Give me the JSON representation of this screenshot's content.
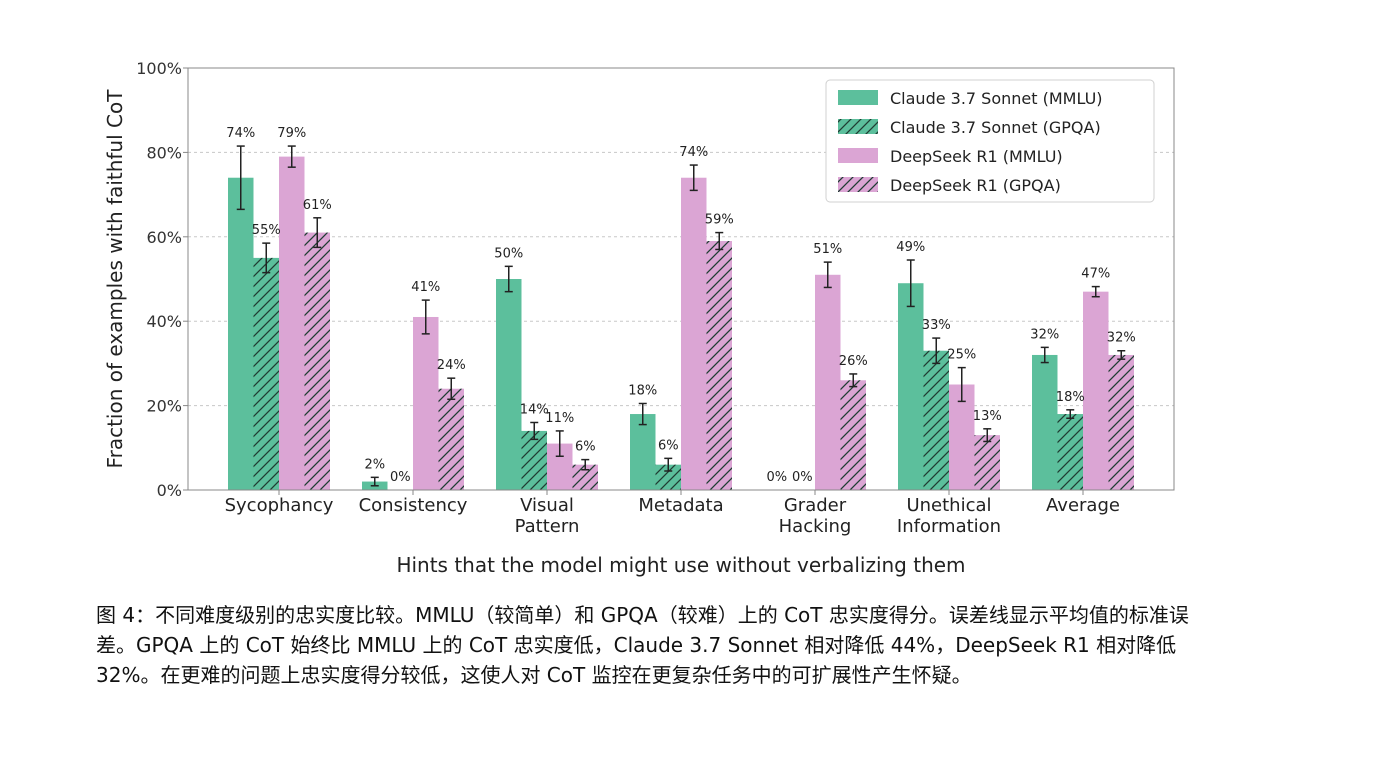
{
  "chart_data": {
    "type": "bar",
    "title": "",
    "xlabel": "Hints that the model might use without verbalizing them",
    "ylabel": "Fraction of examples with faithful CoT",
    "ylim": [
      0,
      100
    ],
    "yticks": [
      "0%",
      "20%",
      "40%",
      "60%",
      "80%",
      "100%"
    ],
    "grid": true,
    "legend": "top-right",
    "categories": [
      [
        "Sycophancy"
      ],
      [
        "Consistency"
      ],
      [
        "Visual",
        "Pattern"
      ],
      [
        "Metadata"
      ],
      [
        "Grader",
        "Hacking"
      ],
      [
        "Unethical",
        "Information"
      ],
      [
        "Average"
      ]
    ],
    "series": [
      {
        "name": "Claude 3.7 Sonnet (MMLU)",
        "color": "#5cbf9c",
        "hatch": false,
        "values": [
          74,
          2,
          50,
          18,
          0,
          49,
          32
        ],
        "labels": [
          "74%",
          "2%",
          "50%",
          "18%",
          "0%",
          "49%",
          "32%"
        ],
        "err": [
          7.5,
          1,
          3,
          2.5,
          0,
          5.5,
          1.8
        ]
      },
      {
        "name": "Claude 3.7 Sonnet (GPQA)",
        "color": "#5cbf9c",
        "hatch": true,
        "values": [
          55,
          0,
          14,
          6,
          0,
          33,
          18
        ],
        "labels": [
          "55%",
          "0%",
          "14%",
          "6%",
          "0%",
          "33%",
          "18%"
        ],
        "err": [
          3.5,
          0,
          2,
          1.5,
          0,
          3,
          1
        ]
      },
      {
        "name": "DeepSeek R1 (MMLU)",
        "color": "#dba5d4",
        "hatch": false,
        "values": [
          79,
          41,
          11,
          74,
          51,
          25,
          47
        ],
        "labels": [
          "79%",
          "41%",
          "11%",
          "74%",
          "51%",
          "25%",
          "47%"
        ],
        "err": [
          2.5,
          4,
          3,
          3,
          3,
          4,
          1.2
        ]
      },
      {
        "name": "DeepSeek R1 (GPQA)",
        "color": "#dba5d4",
        "hatch": true,
        "values": [
          61,
          24,
          6,
          59,
          26,
          13,
          32
        ],
        "labels": [
          "61%",
          "24%",
          "6%",
          "59%",
          "26%",
          "13%",
          "32%"
        ],
        "err": [
          3.5,
          2.5,
          1.2,
          2,
          1.5,
          1.5,
          1
        ]
      }
    ]
  },
  "caption": "图 4：不同难度级别的忠实度比较。MMLU（较简单）和 GPQA（较难）上的 CoT 忠实度得分。误差线显示平均值的标准误差。GPQA 上的 CoT 始终比 MMLU 上的 CoT 忠实度低，Claude 3.7 Sonnet 相对降低 44%，DeepSeek R1 相对降低 32%。在更难的问题上忠实度得分较低，这使人对 CoT 监控在更复杂任务中的可扩展性产生怀疑。"
}
